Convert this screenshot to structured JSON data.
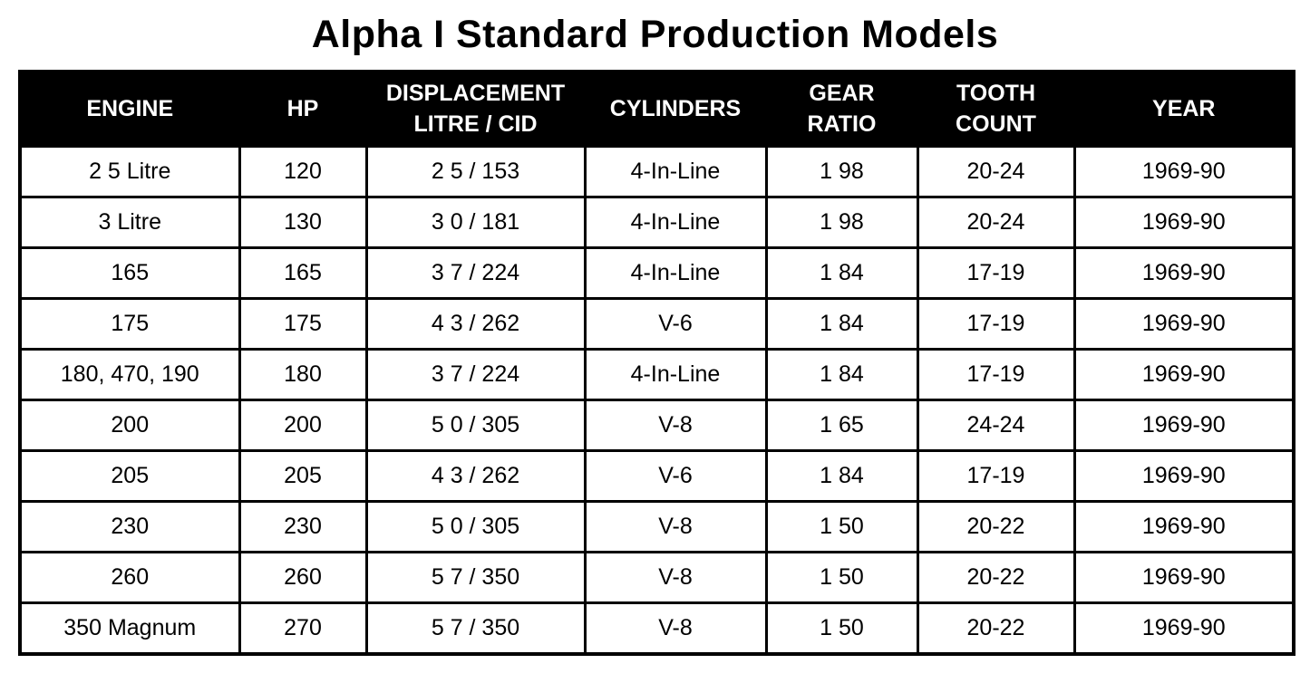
{
  "page": {
    "title": "Alpha I Standard Production Models"
  },
  "colors": {
    "header_bg": "#000000",
    "header_text": "#ffffff",
    "border": "#000000",
    "page_bg": "#ffffff"
  },
  "table": {
    "headers": [
      "ENGINE",
      "HP",
      "DISPLACEMENT\nLITRE / CID",
      "CYLINDERS",
      "GEAR\nRATIO",
      "TOOTH\nCOUNT",
      "YEAR"
    ],
    "rows": [
      [
        "2 5 Litre",
        "120",
        "2 5 / 153",
        "4-In-Line",
        "1 98",
        "20-24",
        "1969-90"
      ],
      [
        "3 Litre",
        "130",
        "3 0 / 181",
        "4-In-Line",
        "1 98",
        "20-24",
        "1969-90"
      ],
      [
        "165",
        "165",
        "3 7 / 224",
        "4-In-Line",
        "1 84",
        "17-19",
        "1969-90"
      ],
      [
        "175",
        "175",
        "4 3 / 262",
        "V-6",
        "1 84",
        "17-19",
        "1969-90"
      ],
      [
        "180, 470, 190",
        "180",
        "3 7 / 224",
        "4-In-Line",
        "1 84",
        "17-19",
        "1969-90"
      ],
      [
        "200",
        "200",
        "5 0 / 305",
        "V-8",
        "1 65",
        "24-24",
        "1969-90"
      ],
      [
        "205",
        "205",
        "4 3 / 262",
        "V-6",
        "1 84",
        "17-19",
        "1969-90"
      ],
      [
        "230",
        "230",
        "5 0 / 305",
        "V-8",
        "1 50",
        "20-22",
        "1969-90"
      ],
      [
        "260",
        "260",
        "5 7 / 350",
        "V-8",
        "1 50",
        "20-22",
        "1969-90"
      ],
      [
        "350 Magnum",
        "270",
        "5 7 / 350",
        "V-8",
        "1 50",
        "20-22",
        "1969-90"
      ]
    ]
  }
}
